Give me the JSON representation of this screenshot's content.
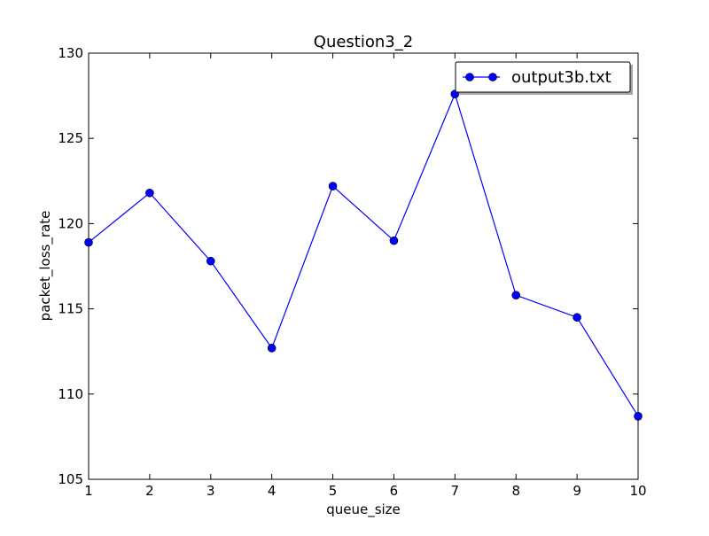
{
  "chart_data": {
    "type": "line",
    "title": "Question3_2",
    "xlabel": "queue_size",
    "ylabel": "packet_loss_rate",
    "xlim": [
      1,
      10
    ],
    "ylim": [
      105,
      130
    ],
    "xticks": [
      1,
      2,
      3,
      4,
      5,
      6,
      7,
      8,
      9,
      10
    ],
    "yticks": [
      105,
      110,
      115,
      120,
      125,
      130
    ],
    "grid": false,
    "legend_position": "top-right",
    "series": [
      {
        "name": "output3b.txt",
        "color": "#0000ff",
        "marker": "circle",
        "x": [
          1,
          2,
          3,
          4,
          5,
          6,
          7,
          8,
          9,
          10
        ],
        "y": [
          118.9,
          121.8,
          117.8,
          112.7,
          122.2,
          119.0,
          127.6,
          115.8,
          114.5,
          108.7
        ]
      }
    ]
  }
}
